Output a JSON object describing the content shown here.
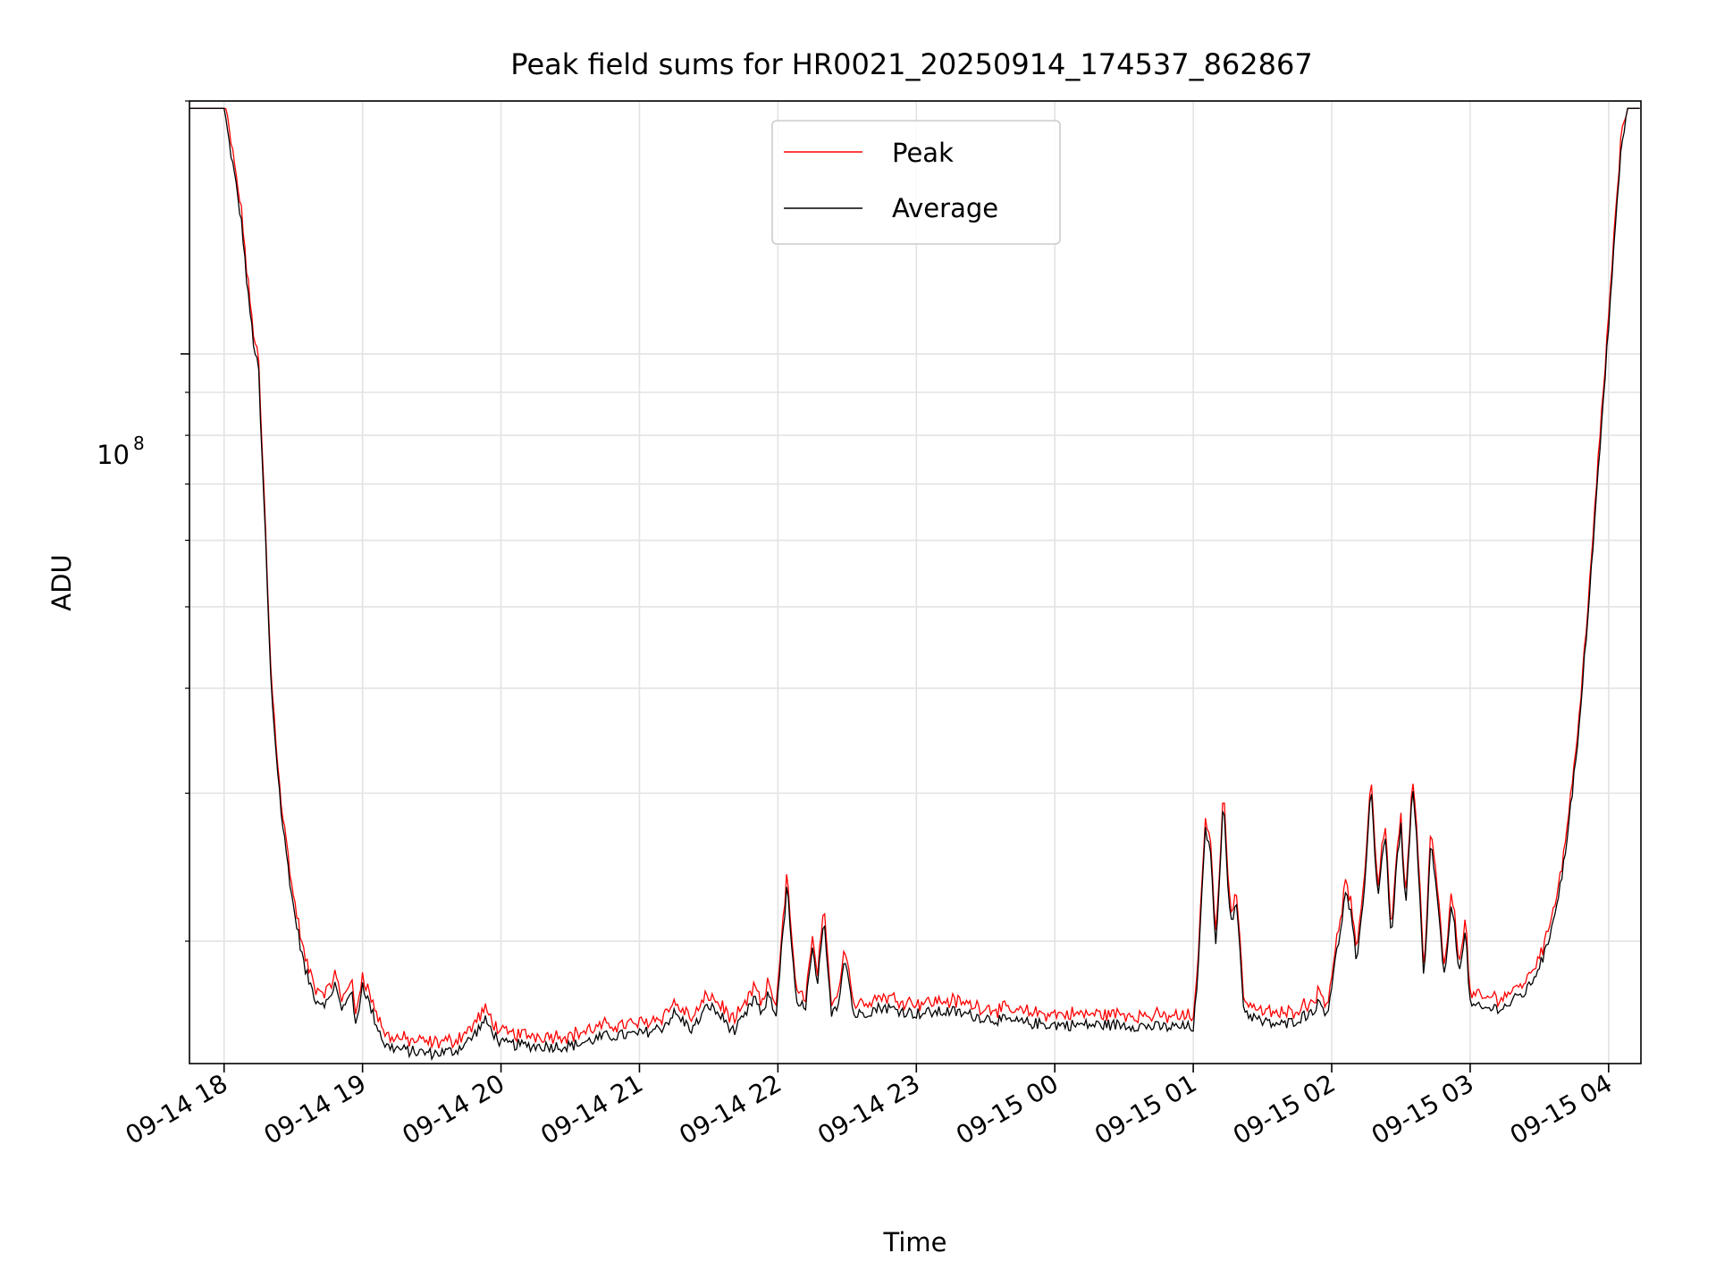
{
  "chart_data": {
    "type": "line",
    "title": "Peak field sums for HR0021_20250914_174537_862867",
    "xlabel": "Time",
    "ylabel": "ADU",
    "y_scale": "log",
    "y_major_tick_label": "10",
    "y_major_tick_exponent": "8",
    "grid": true,
    "legend_position": "upper center",
    "x_tick_labels": [
      "09-14 18",
      "09-14 19",
      "09-14 20",
      "09-14 21",
      "09-14 22",
      "09-14 23",
      "09-15 00",
      "09-15 01",
      "09-15 02",
      "09-15 03",
      "09-15 04"
    ],
    "x_range": [
      "2025-09-14 17:45",
      "2025-09-15 04:14"
    ],
    "y_range": [
      14300000,
      200000000
    ],
    "series": [
      {
        "name": "Peak",
        "color": "#ff0000"
      },
      {
        "name": "Average",
        "color": "#000000"
      }
    ],
    "average_values": [
      [
        "2025-09-14 17:45",
        196000000
      ],
      [
        "2025-09-14 18:00",
        196000000
      ],
      [
        "2025-09-14 18:02",
        180000000
      ],
      [
        "2025-09-14 18:05",
        160000000
      ],
      [
        "2025-09-14 18:08",
        140000000
      ],
      [
        "2025-09-14 18:10",
        120000000
      ],
      [
        "2025-09-14 18:13",
        102000000
      ],
      [
        "2025-09-14 18:15",
        95000000
      ],
      [
        "2025-09-14 18:16",
        80000000
      ],
      [
        "2025-09-14 18:18",
        60000000
      ],
      [
        "2025-09-14 18:20",
        42000000
      ],
      [
        "2025-09-14 18:22",
        35000000
      ],
      [
        "2025-09-14 18:25",
        28000000
      ],
      [
        "2025-09-14 18:30",
        22000000
      ],
      [
        "2025-09-14 18:35",
        18500000
      ],
      [
        "2025-09-14 18:40",
        17000000
      ],
      [
        "2025-09-14 18:45",
        16900000
      ],
      [
        "2025-09-14 18:48",
        17800000
      ],
      [
        "2025-09-14 18:51",
        16500000
      ],
      [
        "2025-09-14 18:55",
        17600000
      ],
      [
        "2025-09-14 18:57",
        15800000
      ],
      [
        "2025-09-14 19:00",
        17800000
      ],
      [
        "2025-09-14 19:05",
        16200000
      ],
      [
        "2025-09-14 19:10",
        15000000
      ],
      [
        "2025-09-14 19:20",
        14800000
      ],
      [
        "2025-09-14 19:30",
        14700000
      ],
      [
        "2025-09-14 19:40",
        14800000
      ],
      [
        "2025-09-14 19:47",
        15300000
      ],
      [
        "2025-09-14 19:53",
        16100000
      ],
      [
        "2025-09-14 20:00",
        15100000
      ],
      [
        "2025-09-14 20:15",
        15000000
      ],
      [
        "2025-09-14 20:30",
        15000000
      ],
      [
        "2025-09-14 20:45",
        15400000
      ],
      [
        "2025-09-14 21:00",
        15500000
      ],
      [
        "2025-09-14 21:10",
        15800000
      ],
      [
        "2025-09-14 21:15",
        16400000
      ],
      [
        "2025-09-14 21:23",
        15700000
      ],
      [
        "2025-09-14 21:30",
        16800000
      ],
      [
        "2025-09-14 21:36",
        16200000
      ],
      [
        "2025-09-14 21:41",
        15600000
      ],
      [
        "2025-09-14 21:46",
        16300000
      ],
      [
        "2025-09-14 21:50",
        17200000
      ],
      [
        "2025-09-14 21:53",
        16200000
      ],
      [
        "2025-09-14 21:56",
        17400000
      ],
      [
        "2025-09-14 21:59",
        16200000
      ],
      [
        "2025-09-14 22:04",
        23300000
      ],
      [
        "2025-09-14 22:08",
        16700000
      ],
      [
        "2025-09-14 22:12",
        16800000
      ],
      [
        "2025-09-14 22:15",
        19500000
      ],
      [
        "2025-09-14 22:17",
        17700000
      ],
      [
        "2025-09-14 22:20",
        21000000
      ],
      [
        "2025-09-14 22:23",
        16500000
      ],
      [
        "2025-09-14 22:26",
        16800000
      ],
      [
        "2025-09-14 22:29",
        19300000
      ],
      [
        "2025-09-14 22:33",
        16300000
      ],
      [
        "2025-09-14 22:45",
        16700000
      ],
      [
        "2025-09-14 23:00",
        16400000
      ],
      [
        "2025-09-14 23:15",
        16500000
      ],
      [
        "2025-09-14 23:30",
        16200000
      ],
      [
        "2025-09-14 23:45",
        16000000
      ],
      [
        "2025-09-15 00:00",
        15900000
      ],
      [
        "2025-09-15 00:15",
        15900000
      ],
      [
        "2025-09-15 00:30",
        15900000
      ],
      [
        "2025-09-15 00:45",
        15800000
      ],
      [
        "2025-09-15 01:00",
        15800000
      ],
      [
        "2025-09-15 01:02",
        18000000
      ],
      [
        "2025-09-15 01:05",
        27000000
      ],
      [
        "2025-09-15 01:07",
        26500000
      ],
      [
        "2025-09-15 01:10",
        19500000
      ],
      [
        "2025-09-15 01:13",
        30000000
      ],
      [
        "2025-09-15 01:16",
        21000000
      ],
      [
        "2025-09-15 01:19",
        22000000
      ],
      [
        "2025-09-15 01:22",
        16500000
      ],
      [
        "2025-09-15 01:30",
        16000000
      ],
      [
        "2025-09-15 01:40",
        15900000
      ],
      [
        "2025-09-15 01:50",
        16400000
      ],
      [
        "2025-09-15 01:55",
        16900000
      ],
      [
        "2025-09-15 01:58",
        16400000
      ],
      [
        "2025-09-15 02:03",
        20000000
      ],
      [
        "2025-09-15 02:06",
        22800000
      ],
      [
        "2025-09-15 02:08",
        21800000
      ],
      [
        "2025-09-15 02:11",
        18700000
      ],
      [
        "2025-09-15 02:14",
        23000000
      ],
      [
        "2025-09-15 02:17",
        30500000
      ],
      [
        "2025-09-15 02:20",
        22500000
      ],
      [
        "2025-09-15 02:23",
        27000000
      ],
      [
        "2025-09-15 02:26",
        20000000
      ],
      [
        "2025-09-15 02:28",
        24500000
      ],
      [
        "2025-09-15 02:30",
        27500000
      ],
      [
        "2025-09-15 02:32",
        21500000
      ],
      [
        "2025-09-15 02:35",
        30500000
      ],
      [
        "2025-09-15 02:37",
        26000000
      ],
      [
        "2025-09-15 02:40",
        17800000
      ],
      [
        "2025-09-15 02:43",
        26500000
      ],
      [
        "2025-09-15 02:46",
        22000000
      ],
      [
        "2025-09-15 02:49",
        17800000
      ],
      [
        "2025-09-15 02:52",
        22500000
      ],
      [
        "2025-09-15 02:55",
        18500000
      ],
      [
        "2025-09-15 02:58",
        20500000
      ],
      [
        "2025-09-15 03:00",
        16800000
      ],
      [
        "2025-09-15 03:05",
        16600000
      ],
      [
        "2025-09-15 03:15",
        16700000
      ],
      [
        "2025-09-15 03:25",
        17500000
      ],
      [
        "2025-09-15 03:33",
        19500000
      ],
      [
        "2025-09-15 03:40",
        24000000
      ],
      [
        "2025-09-15 03:47",
        35000000
      ],
      [
        "2025-09-15 03:53",
        58000000
      ],
      [
        "2025-09-15 03:58",
        90000000
      ],
      [
        "2025-09-15 04:02",
        130000000
      ],
      [
        "2025-09-15 04:05",
        170000000
      ],
      [
        "2025-09-15 04:08",
        196000000
      ],
      [
        "2025-09-15 04:14",
        196000000
      ]
    ],
    "peak_offset_ratio": 1.02
  }
}
